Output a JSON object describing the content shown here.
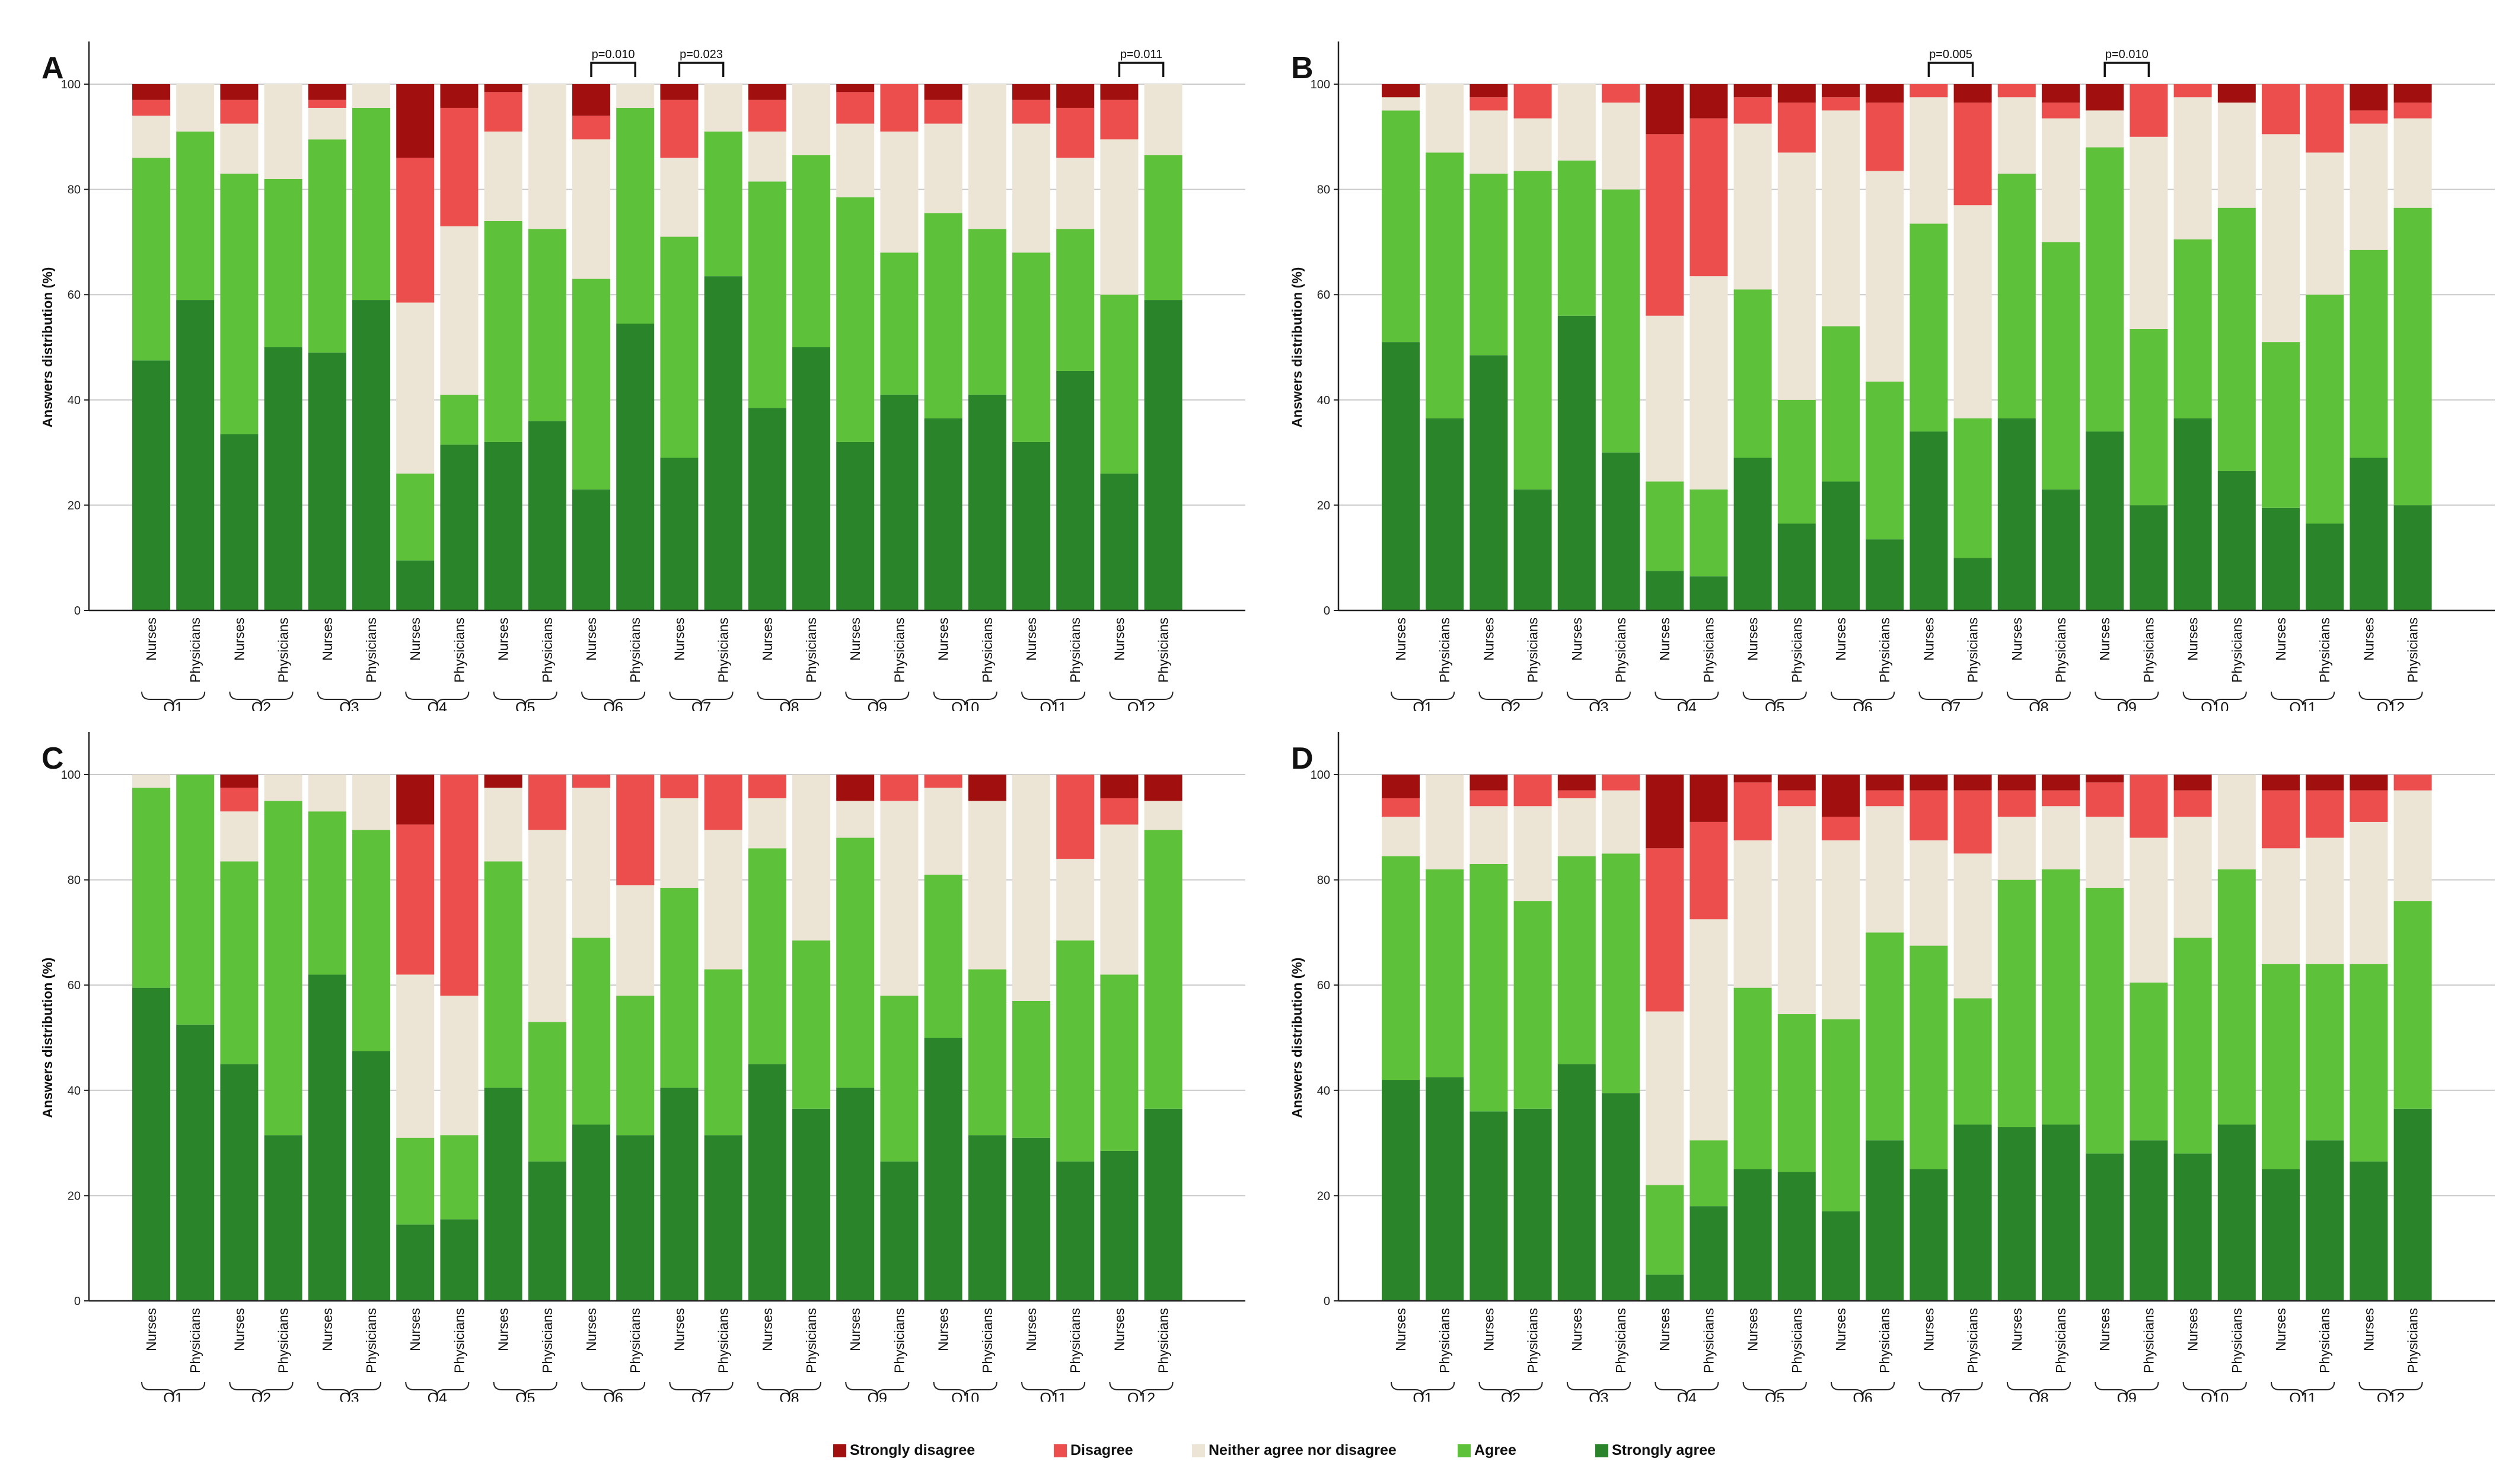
{
  "chart_data": {
    "type": "stacked-bar",
    "ylabel": "Answers distribution (%)",
    "ylim": [
      0,
      100
    ],
    "yticks": [
      0,
      20,
      40,
      60,
      80,
      100
    ],
    "grid": true,
    "bar_labels": [
      "Nurses",
      "Physicians"
    ],
    "questions": [
      "Q1",
      "Q2",
      "Q3",
      "Q4",
      "Q5",
      "Q6",
      "Q7",
      "Q8",
      "Q9",
      "Q10",
      "Q11",
      "Q12"
    ],
    "categories": [
      {
        "name": "Strongly agree",
        "color": "#2a852a"
      },
      {
        "name": "Agree",
        "color": "#5ec13a"
      },
      {
        "name": "Neither agree nor disagree",
        "color": "#ece4d4"
      },
      {
        "name": "Disagree",
        "color": "#ec4d4d"
      },
      {
        "name": "Strongly disagree",
        "color": "#a20f0f"
      }
    ],
    "legend_order": [
      "Strongly disagree",
      "Disagree",
      "Neither agree nor disagree",
      "Agree",
      "Strongly agree"
    ],
    "legend_position": "bottom-center",
    "panels": [
      {
        "label": "A",
        "annotations": [
          {
            "question": "Q6",
            "text": "p=0.010"
          },
          {
            "question": "Q7",
            "text": "p=0.023"
          },
          {
            "question": "Q12",
            "text": "p=0.011"
          }
        ],
        "bars": [
          [
            47.5,
            86,
            94,
            97
          ],
          [
            59,
            91,
            100,
            100
          ],
          [
            33.5,
            83,
            92.5,
            97
          ],
          [
            50,
            82,
            100,
            100
          ],
          [
            49,
            89.5,
            95.5,
            97
          ],
          [
            59,
            95.5,
            100,
            100
          ],
          [
            9.5,
            26,
            58.5,
            86
          ],
          [
            31.5,
            41,
            73,
            95.5
          ],
          [
            32,
            74,
            91,
            98.5
          ],
          [
            36,
            72.5,
            100,
            100
          ],
          [
            23,
            63,
            89.5,
            94
          ],
          [
            54.5,
            95.5,
            100,
            100
          ],
          [
            29,
            71,
            86,
            97
          ],
          [
            63.5,
            91,
            100,
            100
          ],
          [
            38.5,
            81.5,
            91,
            97
          ],
          [
            50,
            86.5,
            100,
            100
          ],
          [
            32,
            78.5,
            92.5,
            98.5
          ],
          [
            41,
            68,
            91,
            100
          ],
          [
            36.5,
            75.5,
            92.5,
            97
          ],
          [
            41,
            72.5,
            100,
            100
          ],
          [
            32,
            68,
            92.5,
            97
          ],
          [
            45.5,
            72.5,
            86,
            95.5
          ],
          [
            26,
            60,
            89.5,
            97
          ],
          [
            59,
            86.5,
            100,
            100
          ]
        ]
      },
      {
        "label": "B",
        "annotations": [
          {
            "question": "Q7",
            "text": "p=0.005"
          },
          {
            "question": "Q9",
            "text": "p=0.010"
          }
        ],
        "bars": [
          [
            51,
            95,
            97.5,
            97.5
          ],
          [
            36.5,
            87,
            100,
            100
          ],
          [
            48.5,
            83,
            95,
            97.5
          ],
          [
            23,
            83.5,
            93.5,
            100
          ],
          [
            56,
            85.5,
            100,
            100
          ],
          [
            30,
            80,
            96.5,
            100
          ],
          [
            7.5,
            24.5,
            56,
            90.5
          ],
          [
            6.5,
            23,
            63.5,
            93.5
          ],
          [
            29,
            61,
            92.5,
            97.5
          ],
          [
            16.5,
            40,
            87,
            96.5
          ],
          [
            24.5,
            54,
            95,
            97.5
          ],
          [
            13.5,
            43.5,
            83.5,
            96.5
          ],
          [
            34,
            73.5,
            97.5,
            100
          ],
          [
            10,
            36.5,
            77,
            96.5
          ],
          [
            36.5,
            83,
            97.5,
            100
          ],
          [
            23,
            70,
            93.5,
            96.5
          ],
          [
            34,
            88,
            95,
            95
          ],
          [
            20,
            53.5,
            90,
            100
          ],
          [
            36.5,
            70.5,
            97.5,
            100
          ],
          [
            26.5,
            76.5,
            96.5,
            96.5
          ],
          [
            19.5,
            51,
            90.5,
            100
          ],
          [
            16.5,
            60,
            87,
            100
          ],
          [
            29,
            68.5,
            92.5,
            95
          ],
          [
            20,
            76.5,
            93.5,
            96.5
          ]
        ]
      },
      {
        "label": "C",
        "annotations": [],
        "bars": [
          [
            59.5,
            97.5,
            100,
            100
          ],
          [
            52.5,
            100,
            100,
            100
          ],
          [
            45,
            83.5,
            93,
            97.5
          ],
          [
            31.5,
            95,
            100,
            100
          ],
          [
            62,
            93,
            100,
            100
          ],
          [
            47.5,
            89.5,
            100,
            100
          ],
          [
            14.5,
            31,
            62,
            90.5
          ],
          [
            15.5,
            31.5,
            58,
            100
          ],
          [
            40.5,
            83.5,
            97.5,
            97.5
          ],
          [
            26.5,
            53,
            89.5,
            100
          ],
          [
            33.5,
            69,
            97.5,
            100
          ],
          [
            31.5,
            58,
            79,
            100
          ],
          [
            40.5,
            78.5,
            95.5,
            100
          ],
          [
            31.5,
            63,
            89.5,
            100
          ],
          [
            45,
            86,
            95.5,
            100
          ],
          [
            36.5,
            68.5,
            100,
            100
          ],
          [
            40.5,
            88,
            95,
            95
          ],
          [
            26.5,
            58,
            95,
            100
          ],
          [
            50,
            81,
            97.5,
            100
          ],
          [
            31.5,
            63,
            95,
            95
          ],
          [
            31,
            57,
            100,
            100
          ],
          [
            26.5,
            68.5,
            84,
            100
          ],
          [
            28.5,
            62,
            90.5,
            95.5
          ],
          [
            36.5,
            89.5,
            95,
            95
          ]
        ]
      },
      {
        "label": "D",
        "annotations": [],
        "bars": [
          [
            42,
            84.5,
            92,
            95.5
          ],
          [
            42.5,
            82,
            100,
            100
          ],
          [
            36,
            83,
            94,
            97
          ],
          [
            36.5,
            76,
            94,
            100
          ],
          [
            45,
            84.5,
            95.5,
            97
          ],
          [
            39.5,
            85,
            97,
            100
          ],
          [
            5,
            22,
            55,
            86
          ],
          [
            18,
            30.5,
            72.5,
            91
          ],
          [
            25,
            59.5,
            87.5,
            98.5
          ],
          [
            24.5,
            54.5,
            94,
            97
          ],
          [
            17,
            53.5,
            87.5,
            92
          ],
          [
            30.5,
            70,
            94,
            97
          ],
          [
            25,
            67.5,
            87.5,
            97
          ],
          [
            33.5,
            57.5,
            85,
            97
          ],
          [
            33,
            80,
            92,
            97
          ],
          [
            33.5,
            82,
            94,
            97
          ],
          [
            28,
            78.5,
            92,
            98.5
          ],
          [
            30.5,
            60.5,
            88,
            100
          ],
          [
            28,
            69,
            92,
            97
          ],
          [
            33.5,
            82,
            100,
            100
          ],
          [
            25,
            64,
            86,
            97
          ],
          [
            30.5,
            64,
            88,
            97
          ],
          [
            26.5,
            64,
            91,
            97
          ],
          [
            36.5,
            76,
            97,
            100
          ]
        ]
      }
    ]
  }
}
